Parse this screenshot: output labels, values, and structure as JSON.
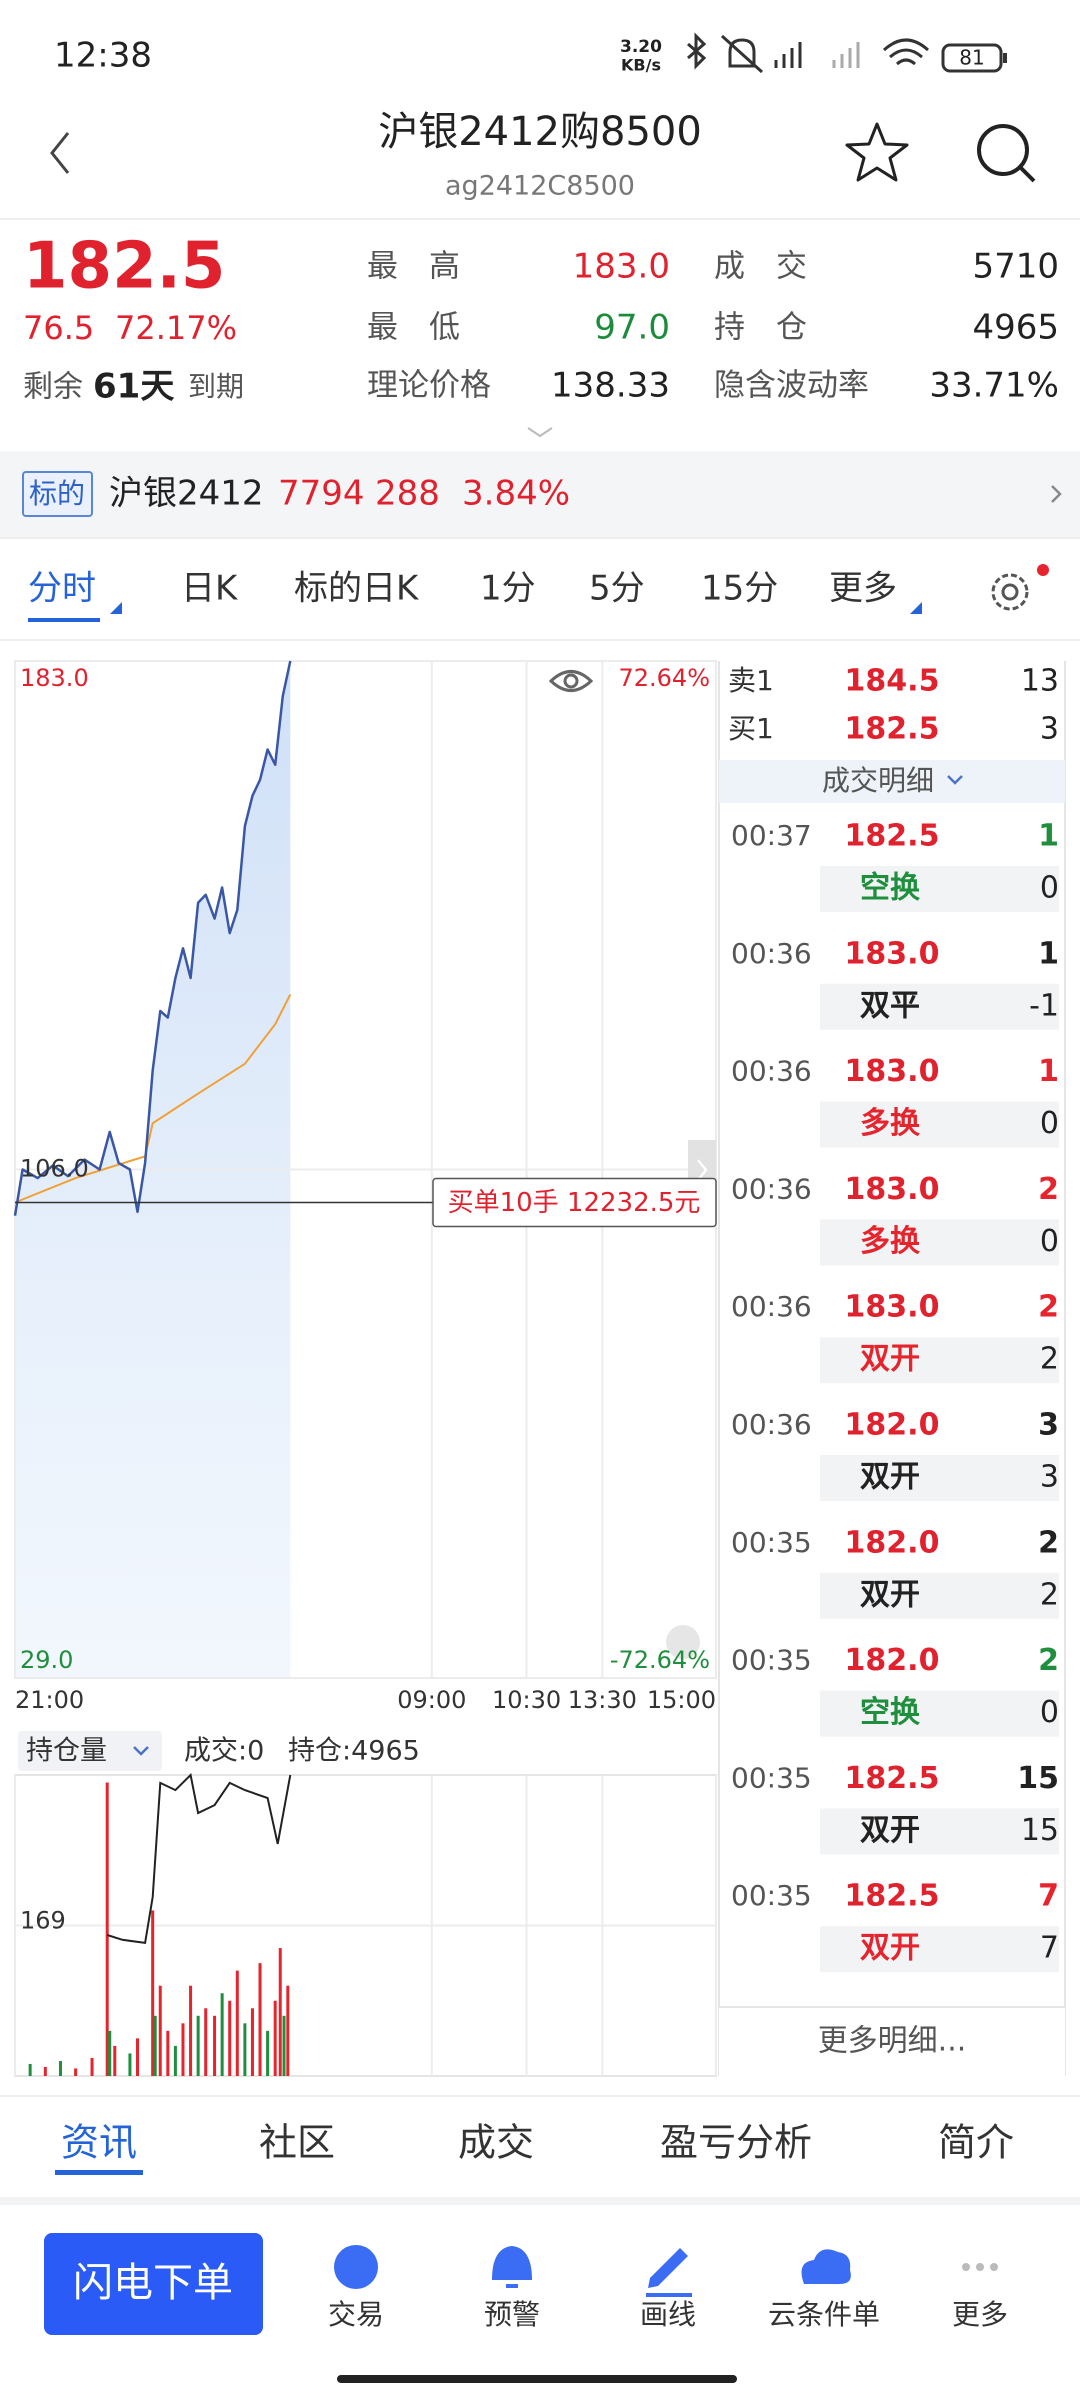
{
  "status_bar": {
    "time": "12:38",
    "net_speed": "3.20",
    "net_unit": "KB/s",
    "battery": "81"
  },
  "header": {
    "title": "沪银2412购8500",
    "code": "ag2412C8500"
  },
  "quote": {
    "price": "182.5",
    "change": "76.5",
    "change_pct": "72.17%",
    "remain_label": "剩余",
    "remain_days": "61天",
    "remain_suffix": "到期",
    "fields": [
      {
        "label": "最　高",
        "value": "183.0",
        "color": "#e0222e"
      },
      {
        "label": "最　低",
        "value": "97.0",
        "color": "#1c8c3c"
      },
      {
        "label": "理论价格",
        "value": "138.33",
        "color": "#222222"
      },
      {
        "label": "成　交",
        "value": "5710",
        "color": "#222222"
      },
      {
        "label": "持　仓",
        "value": "4965",
        "color": "#222222"
      },
      {
        "label": "隐含波动率",
        "value": "33.71%",
        "color": "#222222"
      }
    ]
  },
  "underlying": {
    "tag": "标的",
    "name": "沪银2412",
    "price": "7794",
    "change": "288",
    "change_pct": "3.84%"
  },
  "period_tabs": [
    "分时",
    "日K",
    "标的日K",
    "1分",
    "5分",
    "15分",
    "更多"
  ],
  "intraday": {
    "ylim": [
      29,
      183
    ],
    "yticks": [
      {
        "value": 183,
        "label": "183.0"
      },
      {
        "value": 106,
        "label": "106.0"
      },
      {
        "value": 29,
        "label": "29.0"
      }
    ],
    "pct_labels": [
      "72.64%",
      "-72.64%"
    ],
    "xlim": [
      0,
      555
    ],
    "xticks": [
      {
        "value": 0,
        "label": "21:00"
      },
      {
        "value": 330,
        "label": "09:00"
      },
      {
        "value": 405,
        "label": "10:30"
      },
      {
        "value": 465,
        "label": "13:30"
      },
      {
        "value": 555,
        "label": "15:00"
      }
    ],
    "price": {
      "color": "#3a57a6",
      "x": [
        0,
        6,
        18,
        30,
        42,
        55,
        67,
        75,
        82,
        91,
        97,
        103,
        109,
        115,
        121,
        127,
        133,
        139,
        145,
        151,
        158,
        164,
        170,
        176,
        182,
        188,
        194,
        200,
        206,
        212,
        218
      ],
      "values": [
        99,
        106,
        104.7,
        106.6,
        105,
        107.5,
        106,
        111.7,
        107,
        106,
        99.6,
        107,
        121,
        130,
        129,
        135,
        139.5,
        135,
        146.4,
        147.6,
        144,
        148.7,
        141.8,
        145.3,
        158,
        162.6,
        165,
        169.6,
        167.3,
        177.7,
        183
      ]
    },
    "average": {
      "color": "#f0a035",
      "x": [
        0,
        48,
        103,
        109,
        145,
        182,
        206,
        218
      ],
      "values": [
        101,
        104.7,
        108,
        113,
        117.5,
        122,
        128,
        132.5
      ]
    },
    "order_line": 101,
    "order_label": "买单10手  12232.5元"
  },
  "volume_panel": {
    "selector": "持仓量",
    "turnover": "成交:0",
    "open_interest": "持仓:4965",
    "oi_ylim": [
      150,
      188
    ],
    "oi_yticks": [
      169
    ],
    "oi": {
      "color": "#222222",
      "x": [
        73,
        85,
        103,
        109,
        115,
        127,
        139,
        145,
        158,
        170,
        182,
        200,
        208,
        218
      ],
      "values": [
        167.8,
        167.2,
        166.8,
        172.6,
        187,
        186.1,
        188,
        183.2,
        184.2,
        187,
        186.1,
        185.1,
        179.3,
        188
      ]
    },
    "vol_ylim": [
      0,
      200
    ],
    "volume": {
      "x": [
        12,
        24,
        36,
        48,
        61,
        73,
        75,
        79,
        91,
        97,
        109,
        111,
        115,
        121,
        127,
        133,
        139,
        145,
        151,
        158,
        164,
        170,
        176,
        182,
        188,
        194,
        200,
        206,
        210,
        213,
        216
      ],
      "values": [
        8,
        6,
        10,
        5,
        12,
        195,
        30,
        20,
        15,
        25,
        110,
        40,
        60,
        30,
        20,
        35,
        60,
        40,
        45,
        40,
        55,
        50,
        70,
        35,
        45,
        75,
        30,
        50,
        85,
        40,
        60
      ],
      "colors": [
        "#1f8f3e",
        "#e5242d",
        "#1f8f3e",
        "#e5242d",
        "#e5242d",
        "#e5242d",
        "#1f8f3e",
        "#e5242d",
        "#1f8f3e",
        "#e5242d",
        "#e5242d",
        "#1f8f3e",
        "#e5242d",
        "#e5242d",
        "#1f8f3e",
        "#e5242d",
        "#e5242d",
        "#1f8f3e",
        "#e5242d",
        "#e5242d",
        "#1f8f3e",
        "#e5242d",
        "#e5242d",
        "#1f8f3e",
        "#e5242d",
        "#e5242d",
        "#1f8f3e",
        "#e5242d",
        "#e5242d",
        "#1f8f3e",
        "#e5242d"
      ]
    }
  },
  "order_book": [
    {
      "label": "卖1",
      "price": "184.5",
      "qty": "13"
    },
    {
      "label": "买1",
      "price": "182.5",
      "qty": "3"
    }
  ],
  "trade_detail": {
    "title": "成交明细",
    "trades": [
      {
        "time": "00:37",
        "price": "182.5",
        "qty": "1",
        "qty_color": "#1f8f3e",
        "type": "空换",
        "type_color": "#1f8f3e",
        "oi_change": "0"
      },
      {
        "time": "00:36",
        "price": "183.0",
        "qty": "1",
        "qty_color": "#222222",
        "type": "双平",
        "type_color": "#222222",
        "oi_change": "-1"
      },
      {
        "time": "00:36",
        "price": "183.0",
        "qty": "1",
        "qty_color": "#e5242d",
        "type": "多换",
        "type_color": "#e5242d",
        "oi_change": "0"
      },
      {
        "time": "00:36",
        "price": "183.0",
        "qty": "2",
        "qty_color": "#e5242d",
        "type": "多换",
        "type_color": "#e5242d",
        "oi_change": "0"
      },
      {
        "time": "00:36",
        "price": "183.0",
        "qty": "2",
        "qty_color": "#e5242d",
        "type": "双开",
        "type_color": "#e5242d",
        "oi_change": "2"
      },
      {
        "time": "00:36",
        "price": "182.0",
        "qty": "3",
        "qty_color": "#222222",
        "type": "双开",
        "type_color": "#222222",
        "oi_change": "3"
      },
      {
        "time": "00:35",
        "price": "182.0",
        "qty": "2",
        "qty_color": "#222222",
        "type": "双开",
        "type_color": "#222222",
        "oi_change": "2"
      },
      {
        "time": "00:35",
        "price": "182.0",
        "qty": "2",
        "qty_color": "#1f8f3e",
        "type": "空换",
        "type_color": "#1f8f3e",
        "oi_change": "0"
      },
      {
        "time": "00:35",
        "price": "182.5",
        "qty": "15",
        "qty_color": "#222222",
        "type": "双开",
        "type_color": "#222222",
        "oi_change": "15"
      },
      {
        "time": "00:35",
        "price": "182.5",
        "qty": "7",
        "qty_color": "#e5242d",
        "type": "双开",
        "type_color": "#e5242d",
        "oi_change": "7"
      }
    ],
    "more": "更多明细..."
  },
  "bottom_tabs": [
    "资讯",
    "社区",
    "成交",
    "盈亏分析",
    "简介"
  ],
  "toolbar": {
    "primary": "闪电下单",
    "items": [
      "交易",
      "预警",
      "画线",
      "云条件单",
      "更多"
    ]
  }
}
